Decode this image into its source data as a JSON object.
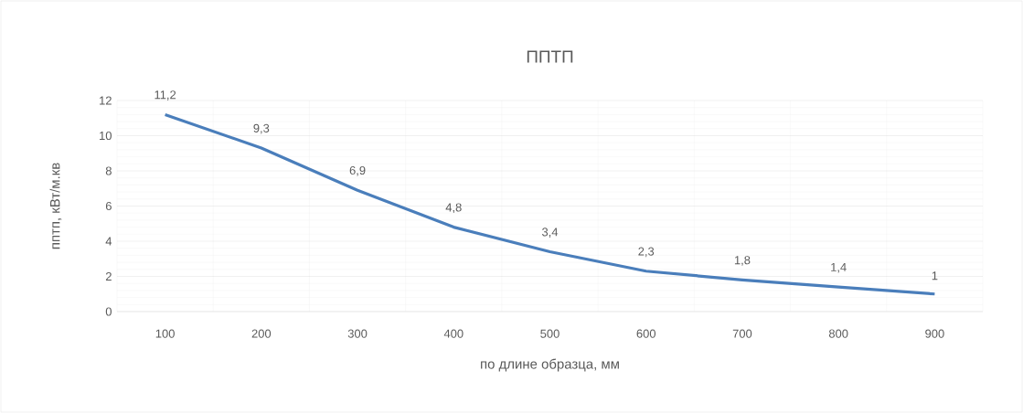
{
  "chart_data": {
    "type": "line",
    "title": "ППТП",
    "xlabel": "по длине образца, мм",
    "ylabel": "пптп, кВт/м.кв",
    "categories": [
      "100",
      "200",
      "300",
      "400",
      "500",
      "600",
      "700",
      "800",
      "900"
    ],
    "series": [
      {
        "color": "#4a7ebb",
        "values": [
          11.2,
          9.3,
          6.9,
          4.8,
          3.4,
          2.3,
          1.8,
          1.4,
          1
        ],
        "value_labels": [
          "11,2",
          "9,3",
          "6,9",
          "4,8",
          "3,4",
          "2,3",
          "1,8",
          "1,4",
          "1"
        ]
      }
    ],
    "ylim": [
      0,
      12
    ],
    "yticks": [
      0,
      2,
      4,
      6,
      8,
      10,
      12
    ],
    "grid": true,
    "marker": "none",
    "line_style": "solid"
  }
}
